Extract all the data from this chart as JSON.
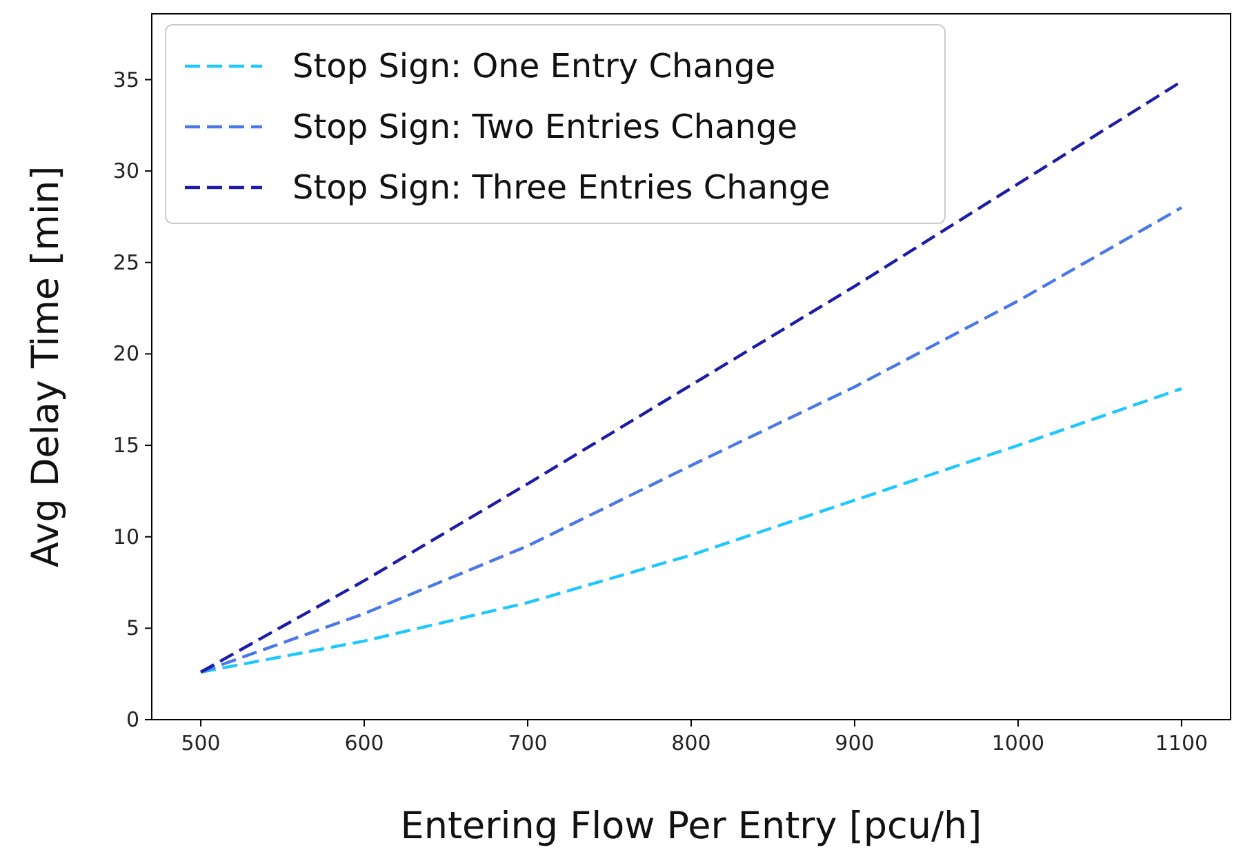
{
  "chart_data": {
    "type": "line",
    "xlabel": "Entering Flow Per Entry [pcu/h]",
    "ylabel": "Avg Delay Time [min]",
    "x": [
      500,
      600,
      700,
      800,
      900,
      1000,
      1100
    ],
    "series": [
      {
        "name": "Stop Sign: One Entry Change",
        "color": "#1ec8ff",
        "values": [
          2.6,
          4.3,
          6.4,
          9.0,
          12.0,
          15.0,
          18.1
        ]
      },
      {
        "name": "Stop Sign: Two Entries Change",
        "color": "#4a78e8",
        "values": [
          2.6,
          5.8,
          9.5,
          13.9,
          18.2,
          22.9,
          28.0
        ]
      },
      {
        "name": "Stop Sign: Three Entries Change",
        "color": "#1c1ca8",
        "values": [
          2.6,
          7.6,
          12.9,
          18.3,
          23.7,
          29.3,
          34.9
        ]
      }
    ],
    "xlim": [
      470,
      1130
    ],
    "ylim": [
      0,
      38.6
    ],
    "xticks": [
      500,
      600,
      700,
      800,
      900,
      1000,
      1100
    ],
    "yticks": [
      0,
      5,
      10,
      15,
      20,
      25,
      30,
      35
    ],
    "legend": "top left",
    "line_style": "dashed",
    "marker": "none",
    "grid": false
  }
}
